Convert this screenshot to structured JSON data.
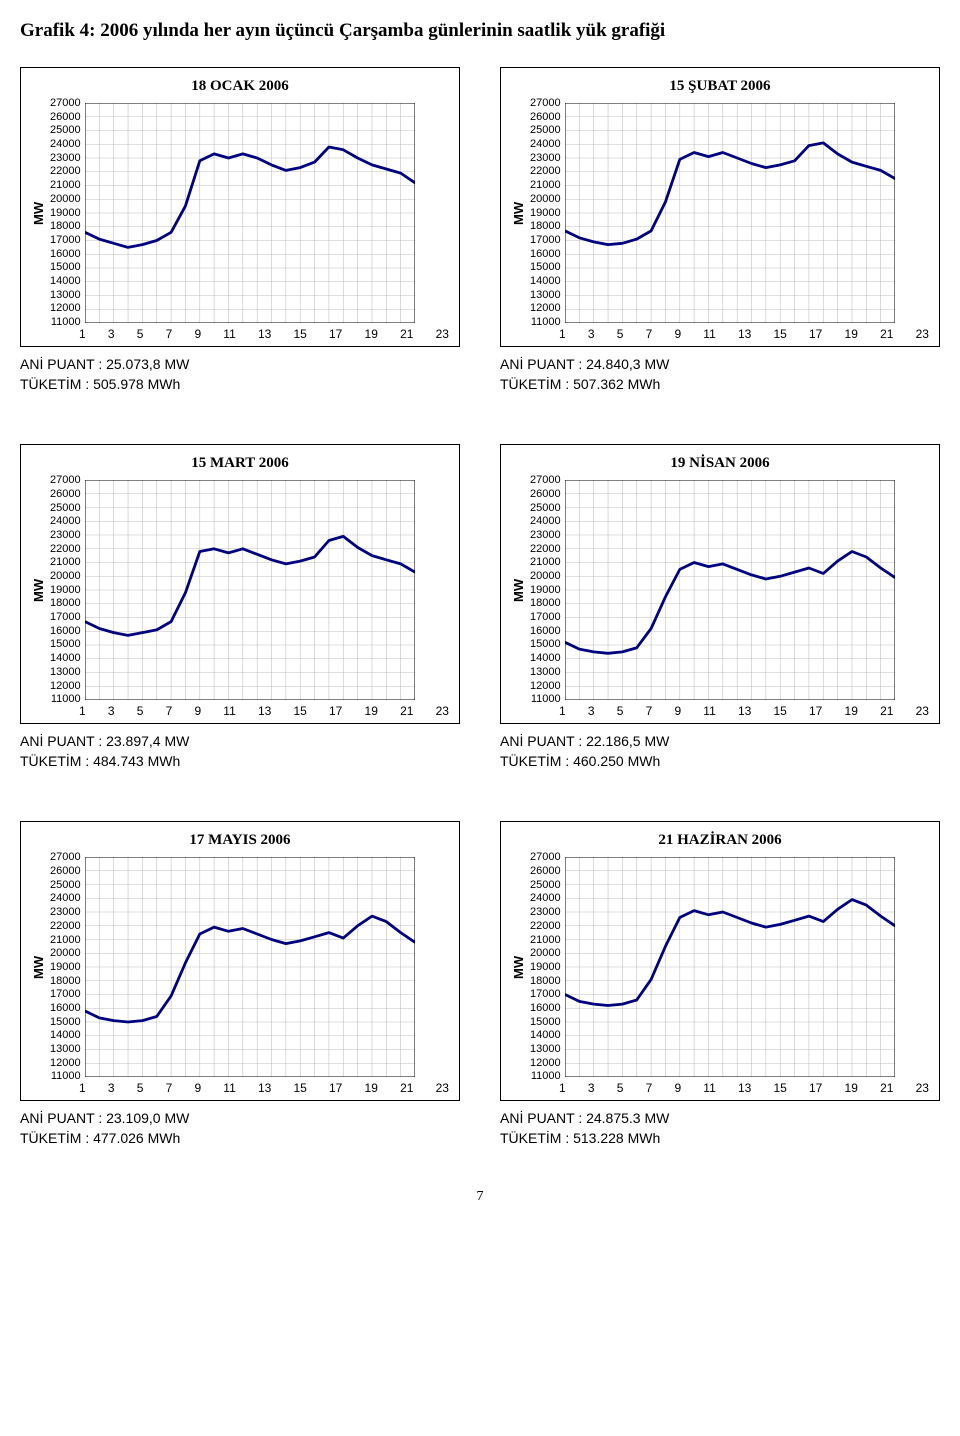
{
  "title": "Grafik 4: 2006 yılında her ayın üçüncü Çarşamba günlerinin saatlik yük grafiği",
  "page_number": "7",
  "global": {
    "y_label": "MW",
    "y_min": 11000,
    "y_max": 27000,
    "y_step": 1000,
    "x_min": 1,
    "x_max": 24,
    "x_ticks": [
      1,
      3,
      5,
      7,
      9,
      11,
      13,
      15,
      17,
      19,
      21,
      23
    ],
    "background_color": "#ffffff",
    "grid_color": "#c0c0c0",
    "border_color": "#000000",
    "line_color": "#000080",
    "line_width": 2.8,
    "label_fontsize": 11,
    "title_fontsize": 15
  },
  "charts": [
    {
      "title": "18 OCAK 2006",
      "ani_puant": "ANİ PUANT : 25.073,8 MW",
      "tuketim": "TÜKETİM    : 505.978 MWh",
      "values": [
        17600,
        17100,
        16800,
        16500,
        16700,
        17000,
        17600,
        19500,
        22800,
        23300,
        23000,
        23300,
        23000,
        22500,
        22100,
        22300,
        22700,
        23800,
        23600,
        23000,
        22500,
        22200,
        21900,
        21200
      ]
    },
    {
      "title": "15 ŞUBAT 2006",
      "ani_puant": "ANİ PUANT : 24.840,3 MW",
      "tuketim": "TÜKETİM    : 507.362 MWh",
      "values": [
        17700,
        17200,
        16900,
        16700,
        16800,
        17100,
        17700,
        19800,
        22900,
        23400,
        23100,
        23400,
        23000,
        22600,
        22300,
        22500,
        22800,
        23900,
        24100,
        23300,
        22700,
        22400,
        22100,
        21500
      ]
    },
    {
      "title": "15 MART 2006",
      "ani_puant": "ANİ PUANT : 23.897,4   MW",
      "tuketim": "TÜKETİM    : 484.743   MWh",
      "values": [
        16700,
        16200,
        15900,
        15700,
        15900,
        16100,
        16700,
        18800,
        21800,
        22000,
        21700,
        22000,
        21600,
        21200,
        20900,
        21100,
        21400,
        22600,
        22900,
        22100,
        21500,
        21200,
        20900,
        20300
      ]
    },
    {
      "title": "19 NİSAN 2006",
      "ani_puant": "ANİ PUANT : 22.186,5 MW",
      "tuketim": "TÜKETİM    : 460.250 MWh",
      "values": [
        15200,
        14700,
        14500,
        14400,
        14500,
        14800,
        16200,
        18500,
        20500,
        21000,
        20700,
        20900,
        20500,
        20100,
        19800,
        20000,
        20300,
        20600,
        20200,
        21100,
        21800,
        21400,
        20600,
        19900
      ]
    },
    {
      "title": "17 MAYIS 2006",
      "ani_puant": "ANİ PUANT : 23.109,0 MW",
      "tuketim": "TÜKETİM    : 477.026  MWh",
      "values": [
        15800,
        15300,
        15100,
        15000,
        15100,
        15400,
        16900,
        19300,
        21400,
        21900,
        21600,
        21800,
        21400,
        21000,
        20700,
        20900,
        21200,
        21500,
        21100,
        22000,
        22700,
        22300,
        21500,
        20800
      ]
    },
    {
      "title": "21 HAZİRAN 2006",
      "ani_puant": "ANİ PUANT : 24.875.3 MW",
      "tuketim": "TÜKETİM    : 513.228 MWh",
      "values": [
        17000,
        16500,
        16300,
        16200,
        16300,
        16600,
        18100,
        20500,
        22600,
        23100,
        22800,
        23000,
        22600,
        22200,
        21900,
        22100,
        22400,
        22700,
        22300,
        23200,
        23900,
        23500,
        22700,
        22000
      ]
    }
  ]
}
